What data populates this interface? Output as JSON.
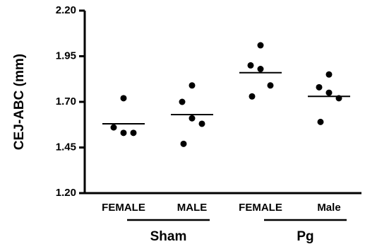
{
  "chart_data": {
    "type": "dot",
    "y_label": "CEJ-ABC (mm)",
    "categories": [
      "FEMALE",
      "MALE",
      "FEMALE",
      "Male"
    ],
    "groups": [
      "Sham",
      "Pg"
    ],
    "values": [
      [
        1.72,
        1.56,
        1.53,
        1.53
      ],
      [
        1.79,
        1.7,
        1.61,
        1.58,
        1.47
      ],
      [
        2.01,
        1.9,
        1.88,
        1.79,
        1.73
      ],
      [
        1.85,
        1.78,
        1.75,
        1.72,
        1.59
      ]
    ],
    "means": [
      1.58,
      1.63,
      1.86,
      1.73
    ],
    "color": "#000000",
    "ylim": [
      1.2,
      2.2
    ],
    "yticks": [
      {
        "value": 1.2,
        "label": "1.20"
      },
      {
        "value": 1.45,
        "label": "1.45"
      },
      {
        "value": 1.7,
        "label": "1.70"
      },
      {
        "value": 1.95,
        "label": "1.95"
      },
      {
        "value": 2.2,
        "label": "2.20"
      }
    ]
  }
}
